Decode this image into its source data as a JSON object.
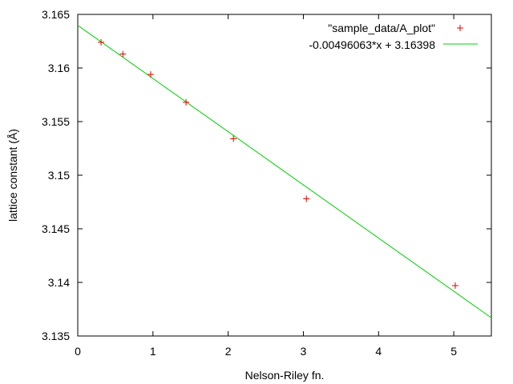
{
  "chart_data": {
    "type": "scatter",
    "xlabel": "Nelson-Riley fn.",
    "ylabel": "lattice constant (Å)",
    "xlim": [
      0,
      5.5
    ],
    "ylim": [
      3.135,
      3.165
    ],
    "x_ticks": [
      0,
      1,
      2,
      3,
      4,
      5
    ],
    "y_ticks": [
      3.135,
      3.14,
      3.145,
      3.15,
      3.155,
      3.16,
      3.165
    ],
    "y_tick_labels": [
      "3.135",
      "3.14",
      "3.145",
      "3.15",
      "3.155",
      "3.16",
      "3.165"
    ],
    "grid": false,
    "legend_position": "top-right",
    "series": [
      {
        "name": "\"sample_data/A_plot\"",
        "kind": "points",
        "marker": "plus",
        "color": "#e00000",
        "x": [
          0.31,
          0.6,
          0.97,
          1.44,
          2.07,
          3.04,
          5.02
        ],
        "y": [
          3.1624,
          3.1613,
          3.1594,
          3.1568,
          3.1534,
          3.1478,
          3.1397
        ]
      },
      {
        "name": "-0.00496063*x + 3.16398",
        "kind": "line",
        "color": "#00d000",
        "slope": -0.00496063,
        "intercept": 3.16398
      }
    ]
  }
}
